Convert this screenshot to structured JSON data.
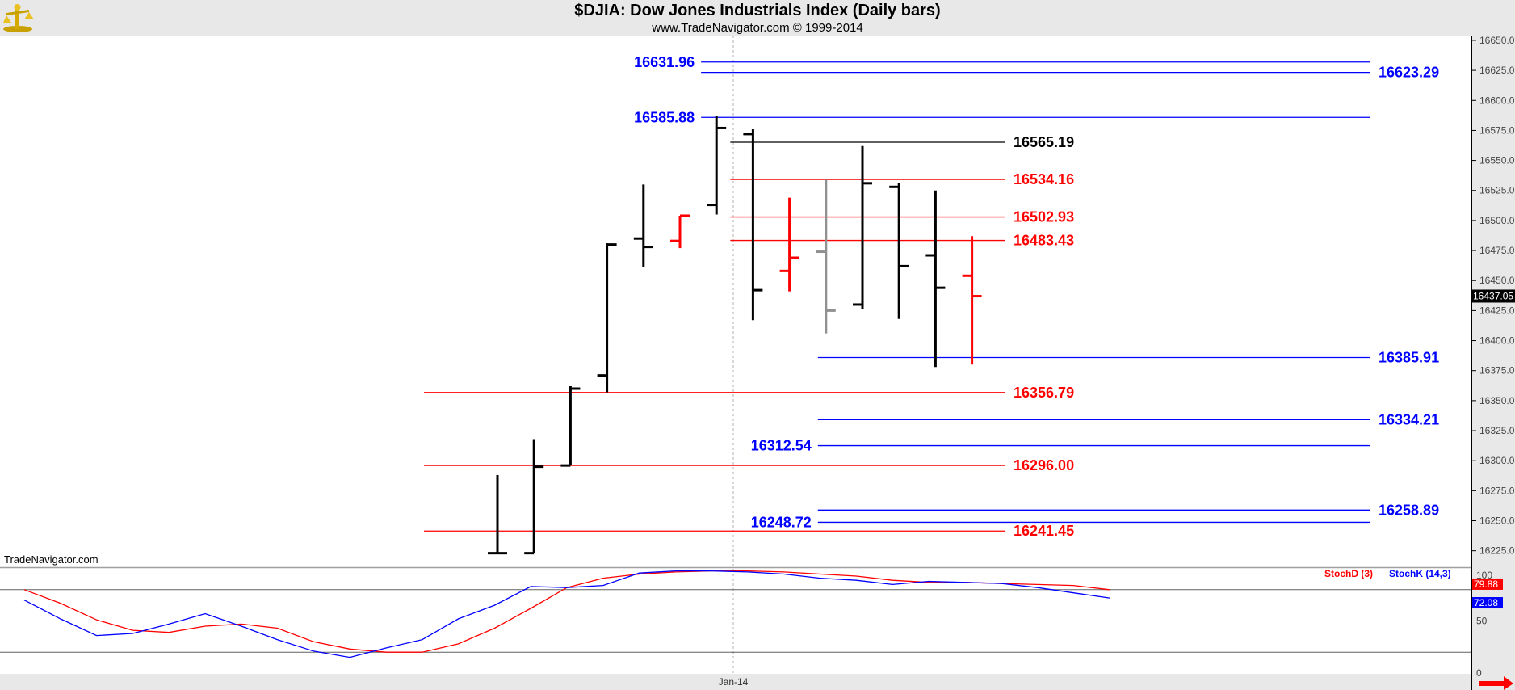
{
  "header": {
    "title": "$DJIA:  Dow Jones Industrials Index  (Daily bars)",
    "subtitle": "www.TradeNavigator.com © 1999-2014"
  },
  "watermark": "TradeNavigator.com",
  "colors": {
    "red": "#ff0000",
    "blue": "#0000ff",
    "black": "#000000",
    "green": "#00d000",
    "gray": "#909090"
  },
  "chart_data": [
    {
      "type": "ohlc",
      "x_label": "Jan-14",
      "ylim": [
        16212,
        16654
      ],
      "y_ticks": [
        "16650.0",
        "16625.0",
        "16600.0",
        "16575.0",
        "16550.0",
        "16525.0",
        "16500.0",
        "16475.0",
        "16450.0",
        "16425.0",
        "16400.0",
        "16375.0",
        "16350.0",
        "16325.0",
        "16300.0",
        "16275.0",
        "16250.0",
        "16225.0"
      ],
      "last_price": "16437.05",
      "bars": [
        {
          "open": 16223,
          "high": 16288,
          "low": 16223,
          "close": 16223,
          "color": "#000000"
        },
        {
          "open": 16223,
          "high": 16318,
          "low": 16223,
          "close": 16295,
          "color": "#000000"
        },
        {
          "open": 16296,
          "high": 16362,
          "low": 16296,
          "close": 16360,
          "color": "#000000"
        },
        {
          "open": 16371,
          "high": 16481,
          "low": 16357,
          "close": 16480,
          "color": "#000000"
        },
        {
          "open": 16485,
          "high": 16530,
          "low": 16461,
          "close": 16478,
          "color": "#000000"
        },
        {
          "open": 16483,
          "high": 16504,
          "low": 16477,
          "close": 16504,
          "color": "#ff0000"
        },
        {
          "open": 16513,
          "high": 16587,
          "low": 16505,
          "close": 16577,
          "color": "#000000"
        },
        {
          "open": 16572,
          "high": 16576,
          "low": 16417,
          "close": 16442,
          "color": "#000000"
        },
        {
          "open": 16458,
          "high": 16519,
          "low": 16441,
          "close": 16469,
          "color": "#ff0000"
        },
        {
          "open": 16474,
          "high": 16534,
          "low": 16406,
          "close": 16425,
          "color": "#909090"
        },
        {
          "open": 16430,
          "high": 16562,
          "low": 16426,
          "close": 16531,
          "color": "#000000"
        },
        {
          "open": 16528,
          "high": 16531,
          "low": 16418,
          "close": 16462,
          "color": "#000000"
        },
        {
          "open": 16471,
          "high": 16525,
          "low": 16378,
          "close": 16444,
          "color": "#000000"
        },
        {
          "open": 16454,
          "high": 16487,
          "low": 16380,
          "close": 16437,
          "color": "#ff0000"
        }
      ],
      "levels": [
        {
          "price": 16631.96,
          "label": "16631.96",
          "color": "#0000ff",
          "side": "left",
          "from_bar": 5.8,
          "to": "right"
        },
        {
          "price": 16623.29,
          "label": "16623.29",
          "color": "#0000ff",
          "side": "right",
          "from_bar": 5.8,
          "to": "right"
        },
        {
          "price": 16585.88,
          "label": "16585.88",
          "color": "#0000ff",
          "side": "left",
          "from_bar": 5.8,
          "to": "right"
        },
        {
          "price": 16565.19,
          "label": "16565.19",
          "color": "#000000",
          "side": "mid",
          "from_bar": 6.6,
          "to": "mid"
        },
        {
          "price": 16534.16,
          "label": "16534.16",
          "color": "#ff0000",
          "side": "mid",
          "from_bar": 6.6,
          "to": "mid"
        },
        {
          "price": 16502.93,
          "label": "16502.93",
          "color": "#ff0000",
          "side": "mid",
          "from_bar": 6.6,
          "to": "mid"
        },
        {
          "price": 16483.43,
          "label": "16483.43",
          "color": "#ff0000",
          "side": "mid",
          "from_bar": 6.6,
          "to": "mid"
        },
        {
          "price": 16385.91,
          "label": "16385.91",
          "color": "#0000ff",
          "side": "right",
          "from_bar": 9.0,
          "to": "right"
        },
        {
          "price": 16356.79,
          "label": "16356.79",
          "color": "#ff0000",
          "side": "mid",
          "from_bar": -1.9,
          "to": "mid"
        },
        {
          "price": 16334.21,
          "label": "16334.21",
          "color": "#0000ff",
          "side": "right",
          "from_bar": 9.0,
          "to": "right"
        },
        {
          "price": 16312.54,
          "label": "16312.54",
          "color": "#0000ff",
          "side": "left",
          "from_bar": 9.0,
          "to": "right"
        },
        {
          "price": 16296.0,
          "label": "16296.00",
          "color": "#ff0000",
          "side": "mid",
          "from_bar": -1.9,
          "to": "mid"
        },
        {
          "price": 16258.89,
          "label": "16258.89",
          "color": "#0000ff",
          "side": "right",
          "from_bar": 9.0,
          "to": "right"
        },
        {
          "price": 16248.72,
          "label": "16248.72",
          "color": "#0000ff",
          "side": "left",
          "from_bar": 9.0,
          "to": "right"
        },
        {
          "price": 16241.45,
          "label": "16241.45",
          "color": "#ff0000",
          "side": "mid",
          "from_bar": -1.9,
          "to": "mid"
        }
      ]
    },
    {
      "type": "line",
      "ylim": [
        0,
        100
      ],
      "y_ticks": [
        "100",
        "50",
        "0"
      ],
      "reference_lines": [
        80,
        20
      ],
      "legend": [
        {
          "label": "StochD (3)",
          "color": "#ff0000"
        },
        {
          "label": "StochK (14,3)",
          "color": "#0000ff"
        }
      ],
      "last_d": "79.88",
      "last_k": "72.08",
      "series": [
        {
          "name": "StochD (3)",
          "color": "#ff0000",
          "values": [
            80,
            67,
            51,
            41,
            39,
            45,
            47,
            43,
            30,
            23,
            20,
            20,
            28,
            43,
            62,
            82,
            91,
            95,
            97,
            98,
            98,
            97,
            95,
            93,
            89,
            87,
            87,
            86,
            85,
            84,
            80
          ]
        },
        {
          "name": "StochK (14,3)",
          "color": "#0000ff",
          "values": [
            70,
            52,
            36,
            38,
            47,
            57,
            45,
            32,
            21,
            15,
            24,
            32,
            52,
            65,
            83,
            82,
            84,
            96,
            98,
            98,
            97,
            95,
            91,
            89,
            85,
            88,
            87,
            86,
            82,
            77,
            72
          ]
        }
      ]
    }
  ]
}
